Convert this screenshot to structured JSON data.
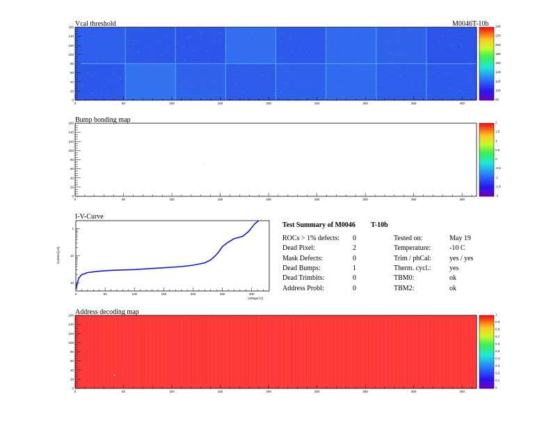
{
  "module_id": "M0046T-10b",
  "chart_data": [
    {
      "type": "heatmap",
      "title": "Vcal threshold",
      "description_colors": "blue / light-blue tiles",
      "xlim": [
        0,
        415
      ],
      "ylim": [
        0,
        160
      ],
      "x_ticks": [
        "0",
        "50",
        "100",
        "150",
        "200",
        "250",
        "300",
        "350",
        "400"
      ],
      "y_ticks": [
        "0",
        "20",
        "40",
        "60",
        "80",
        "100",
        "120",
        "140",
        "160"
      ],
      "z_ticks": [
        "80",
        "100",
        "120",
        "140",
        "160",
        "180",
        "200",
        "220",
        "240"
      ],
      "zlim": [
        80,
        250
      ],
      "roc_tiles_top": [
        0.35,
        0.3,
        0.28,
        0.48,
        0.32,
        0.45,
        0.38,
        0.27
      ],
      "roc_tiles_bottom": [
        0.3,
        0.5,
        0.38,
        0.33,
        0.37,
        0.45,
        0.35,
        0.32
      ]
    },
    {
      "type": "heatmap",
      "title": "Bump bonding map",
      "xlim": [
        0,
        415
      ],
      "ylim": [
        0,
        160
      ],
      "x_ticks": [
        "0",
        "50",
        "100",
        "150",
        "200",
        "250",
        "300",
        "350",
        "400"
      ],
      "y_ticks": [
        "0",
        "20",
        "40",
        "60",
        "80",
        "100",
        "120",
        "140",
        "160"
      ],
      "z_ticks": [
        "-2",
        "-1.5",
        "-1",
        "-0.5",
        "0",
        "0.5",
        "1",
        "1.5",
        "2"
      ],
      "zlim": [
        -2,
        2
      ],
      "points": [
        {
          "x": 133,
          "y": 72
        }
      ]
    },
    {
      "type": "line",
      "title": "I-V-Curve",
      "xlabel": "Voltage [V]",
      "ylabel": "Current [uA]",
      "x_ticks": [
        "0",
        "50",
        "100",
        "150",
        "200",
        "250",
        "300"
      ],
      "y_ticks": [
        "1",
        "10",
        "10",
        "10"
      ],
      "xlim": [
        0,
        330
      ],
      "ylim_log": [
        -1.3,
        1.3
      ],
      "x": [
        0,
        2,
        5,
        10,
        20,
        40,
        60,
        80,
        100,
        120,
        150,
        180,
        200,
        220,
        230,
        238,
        245,
        250,
        260,
        270,
        285,
        295,
        305,
        312
      ],
      "y": [
        0.06,
        0.09,
        0.15,
        0.2,
        0.24,
        0.27,
        0.29,
        0.3,
        0.31,
        0.33,
        0.36,
        0.4,
        0.45,
        0.55,
        0.7,
        1.0,
        1.5,
        2.2,
        3.2,
        4.3,
        5.3,
        8.0,
        15.0,
        25.0
      ]
    },
    {
      "type": "heatmap",
      "title": "Address decoding map",
      "xlim": [
        0,
        415
      ],
      "ylim": [
        0,
        160
      ],
      "x_ticks": [
        "0",
        "50",
        "100",
        "150",
        "200",
        "250",
        "300",
        "350",
        "400"
      ],
      "y_ticks": [
        "0",
        "20",
        "40",
        "60",
        "80",
        "100",
        "120",
        "140",
        "160"
      ],
      "z_ticks": [
        "0",
        "0.1",
        "0.2",
        "0.3",
        "0.4",
        "0.5",
        "0.6",
        "0.7",
        "0.8",
        "0.9",
        "1"
      ],
      "zlim": [
        0,
        1
      ],
      "fill_value": 1,
      "points": [
        {
          "x": 40,
          "y": 30,
          "value": 0
        }
      ]
    }
  ],
  "summary": {
    "title": "Test Summary of M0046",
    "subtitle": "T-10b",
    "left": [
      {
        "label": "ROCs > 1% defects:",
        "value": "0"
      },
      {
        "label": "Dead Pixel:",
        "value": "2"
      },
      {
        "label": "Mask Defects:",
        "value": "0"
      },
      {
        "label": "Dead Bumps:",
        "value": "1"
      },
      {
        "label": "Dead Trimbits:",
        "value": "0"
      },
      {
        "label": "Address Probl:",
        "value": "0"
      }
    ],
    "right": [
      {
        "label": "Tested on:",
        "value": "May 19"
      },
      {
        "label": "Temperature:",
        "value": "-10 C"
      },
      {
        "label": "Trim / phCal:",
        "value": "yes / yes"
      },
      {
        "label": "Therm. cycl.:",
        "value": "yes"
      },
      {
        "label": "TBM0:",
        "value": "ok"
      },
      {
        "label": "TBM2:",
        "value": "ok"
      }
    ]
  }
}
